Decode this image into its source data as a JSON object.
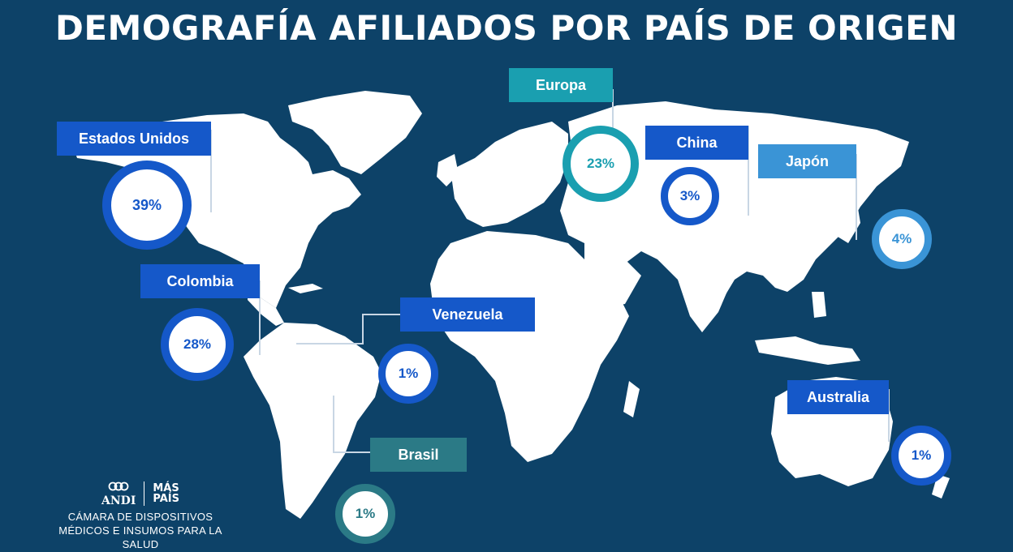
{
  "title": "DEMOGRAFÍA AFILIADOS POR PAÍS DE ORIGEN",
  "colors": {
    "background": "#0d4268",
    "land": "#ffffff",
    "royal_blue": "#1558c9",
    "teal": "#1a9fb0",
    "light_blue": "#3a94d6",
    "slate_teal": "#2b7a86"
  },
  "regions": [
    {
      "id": "estados-unidos",
      "label": "Estados Unidos",
      "percent": "39%"
    },
    {
      "id": "europa",
      "label": "Europa",
      "percent": "23%"
    },
    {
      "id": "china",
      "label": "China",
      "percent": "3%"
    },
    {
      "id": "japon",
      "label": "Japón",
      "percent": "4%"
    },
    {
      "id": "colombia",
      "label": "Colombia",
      "percent": "28%"
    },
    {
      "id": "venezuela",
      "label": "Venezuela",
      "percent": "1%"
    },
    {
      "id": "brasil",
      "label": "Brasil",
      "percent": "1%"
    },
    {
      "id": "australia",
      "label": "Australia",
      "percent": "1%"
    }
  ],
  "footer": {
    "logo_left": "ANDI",
    "logo_right_1": "MÁS",
    "logo_right_2": "PAÍS",
    "line1": "CÁMARA DE DISPOSITIVOS",
    "line2": "MÉDICOS E INSUMOS PARA LA SALUD"
  }
}
